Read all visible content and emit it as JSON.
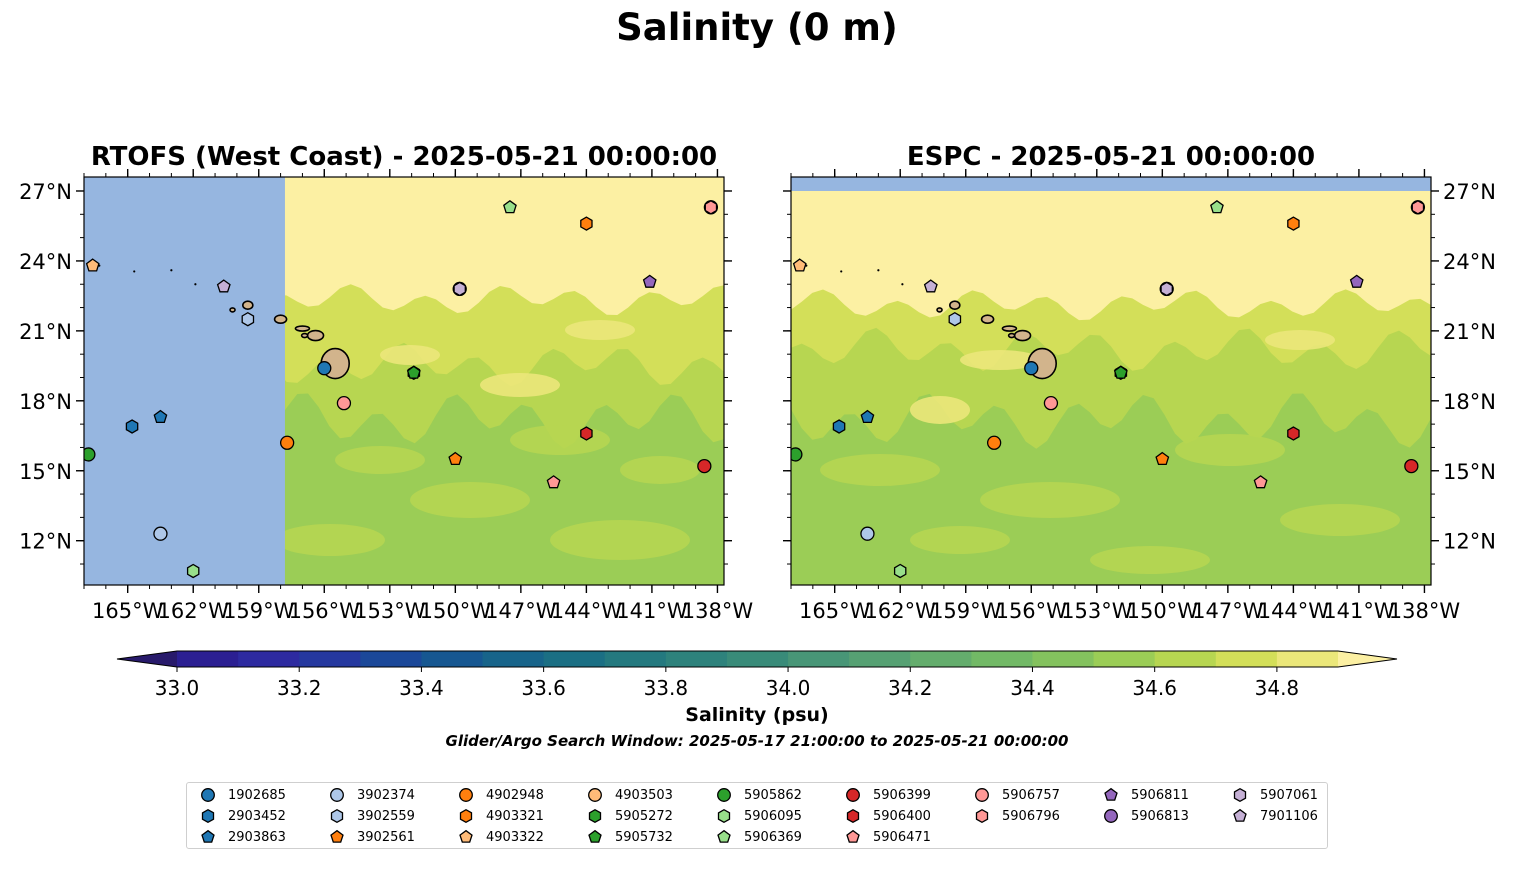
{
  "suptitle": "Salinity (0 m)",
  "colorbar": {
    "label": "Salinity (psu)",
    "ticks": [
      "33.0",
      "33.2",
      "33.4",
      "33.6",
      "33.8",
      "34.0",
      "34.2",
      "34.4",
      "34.6",
      "34.8"
    ],
    "levels": [
      33.0,
      33.1,
      33.2,
      33.3,
      33.4,
      33.5,
      33.6,
      33.7,
      33.8,
      33.9,
      34.0,
      34.1,
      34.2,
      34.3,
      34.4,
      34.5,
      34.6,
      34.7,
      34.8,
      34.9
    ],
    "extend": "both",
    "colors": [
      "#281a6b",
      "#2b1f92",
      "#2d2aa0",
      "#25389f",
      "#1b4899",
      "#165791",
      "#17648a",
      "#1b6f84",
      "#24797f",
      "#2e827c",
      "#398b79",
      "#489677",
      "#56a173",
      "#64ad6d",
      "#72b966",
      "#84c25e",
      "#9bcd56",
      "#b7d651",
      "#d3df59",
      "#ebe77a",
      "#fcf0a3"
    ]
  },
  "subnote": "Glider/Argo Search Window: 2025-05-17 21:00:00 to 2025-05-21 00:00:00",
  "chart_data": [
    {
      "type": "heatmap",
      "title": "RTOFS (West Coast) - 2025-05-21 00:00:00",
      "xlim": [
        -167,
        -137.7
      ],
      "ylim": [
        10.1,
        27.6
      ],
      "xticks": [
        "165°W",
        "162°W",
        "159°W",
        "156°W",
        "153°W",
        "150°W",
        "147°W",
        "144°W",
        "141°W",
        "138°W"
      ],
      "yticks": [
        "27°N",
        "24°N",
        "21°N",
        "18°N",
        "15°N",
        "12°N"
      ],
      "ytick_side": "left",
      "masked_region": {
        "lon_min": -167,
        "lon_max": -157.8,
        "color": "#96b6e0"
      },
      "approx_salinity_bands": [
        {
          "lat_min": 22.3,
          "lat_max": 27.6,
          "psu": ">34.9"
        },
        {
          "lat_min": 19.0,
          "lat_max": 22.3,
          "psu": "34.6-34.9"
        },
        {
          "lat_min": 10.1,
          "lat_max": 19.0,
          "psu": "34.4-34.7"
        }
      ]
    },
    {
      "type": "heatmap",
      "title": "ESPC - 2025-05-21 00:00:00",
      "xlim": [
        -167,
        -137.7
      ],
      "ylim": [
        10.1,
        27.6
      ],
      "xticks": [
        "165°W",
        "162°W",
        "159°W",
        "156°W",
        "153°W",
        "150°W",
        "147°W",
        "144°W",
        "141°W",
        "138°W"
      ],
      "yticks": [
        "27°N",
        "24°N",
        "21°N",
        "18°N",
        "15°N",
        "12°N"
      ],
      "ytick_side": "right",
      "masked_band": {
        "lat_min": 27.0,
        "lat_max": 27.6,
        "color": "#96b6e0"
      },
      "approx_salinity_bands": [
        {
          "lat_min": 21.6,
          "lat_max": 27.0,
          "psu": ">34.9"
        },
        {
          "lat_min": 17.0,
          "lat_max": 21.6,
          "psu": "34.6-34.8"
        },
        {
          "lat_min": 10.1,
          "lat_max": 17.0,
          "psu": "34.4-34.6"
        }
      ]
    }
  ],
  "floats": [
    {
      "id": "1902685",
      "lon": -156.0,
      "lat": 19.4,
      "color": "#1f77b4",
      "marker": "circle"
    },
    {
      "id": "2903452",
      "lon": -164.8,
      "lat": 16.9,
      "color": "#1f77b4",
      "marker": "hexagon"
    },
    {
      "id": "2903863",
      "lon": -163.5,
      "lat": 17.3,
      "color": "#1f77b4",
      "marker": "pentagon"
    },
    {
      "id": "3902374",
      "lon": -163.5,
      "lat": 12.3,
      "color": "#aec7e8",
      "marker": "circle"
    },
    {
      "id": "3902559",
      "lon": -159.5,
      "lat": 21.5,
      "color": "#aec7e8",
      "marker": "hexagon"
    },
    {
      "id": "3902561",
      "lon": -150.0,
      "lat": 15.5,
      "color": "#ff7f0e",
      "marker": "pentagon"
    },
    {
      "id": "4902948",
      "lon": -157.7,
      "lat": 16.2,
      "color": "#ff7f0e",
      "marker": "circle"
    },
    {
      "id": "4903321",
      "lon": -144.0,
      "lat": 25.6,
      "color": "#ff7f0e",
      "marker": "hexagon"
    },
    {
      "id": "4903322",
      "lon": -166.6,
      "lat": 23.8,
      "color": "#ffbb78",
      "marker": "pentagon"
    },
    {
      "id": "4903503",
      "lon": -138.3,
      "lat": 26.3,
      "color": "#ffbb78",
      "marker": "circle"
    },
    {
      "id": "5905862",
      "lon": -166.8,
      "lat": 15.7,
      "color": "#2ca02c",
      "marker": "circle"
    },
    {
      "id": "5905272",
      "lon": -151.9,
      "lat": 19.2,
      "color": "#2ca02c",
      "marker": "hexagon"
    },
    {
      "id": "5905732",
      "lon": -151.9,
      "lat": 19.2,
      "color": "#2ca02c",
      "marker": "pentagon"
    },
    {
      "id": "5906095",
      "lon": -162.0,
      "lat": 10.7,
      "color": "#98df8a",
      "marker": "hexagon"
    },
    {
      "id": "5906369",
      "lon": -147.5,
      "lat": 26.3,
      "color": "#98df8a",
      "marker": "pentagon"
    },
    {
      "id": "5906399",
      "lon": -138.6,
      "lat": 15.2,
      "color": "#d62728",
      "marker": "circle"
    },
    {
      "id": "5906400",
      "lon": -144.0,
      "lat": 16.6,
      "color": "#d62728",
      "marker": "hexagon"
    },
    {
      "id": "5906471",
      "lon": -145.5,
      "lat": 14.5,
      "color": "#ff9896",
      "marker": "pentagon"
    },
    {
      "id": "5906757",
      "lon": -155.1,
      "lat": 17.9,
      "color": "#ff9896",
      "marker": "circle"
    },
    {
      "id": "5906796",
      "lon": -138.3,
      "lat": 26.3,
      "color": "#ff9896",
      "marker": "hexagon"
    },
    {
      "id": "5906811",
      "lon": -141.1,
      "lat": 23.1,
      "color": "#9467bd",
      "marker": "pentagon"
    },
    {
      "id": "5906813",
      "lon": -149.8,
      "lat": 22.8,
      "color": "#9467bd",
      "marker": "circle"
    },
    {
      "id": "5907061",
      "lon": -149.8,
      "lat": 22.8,
      "color": "#c5b0d5",
      "marker": "hexagon"
    },
    {
      "id": "7901106",
      "lon": -160.6,
      "lat": 22.9,
      "color": "#c5b0d5",
      "marker": "pentagon"
    }
  ]
}
